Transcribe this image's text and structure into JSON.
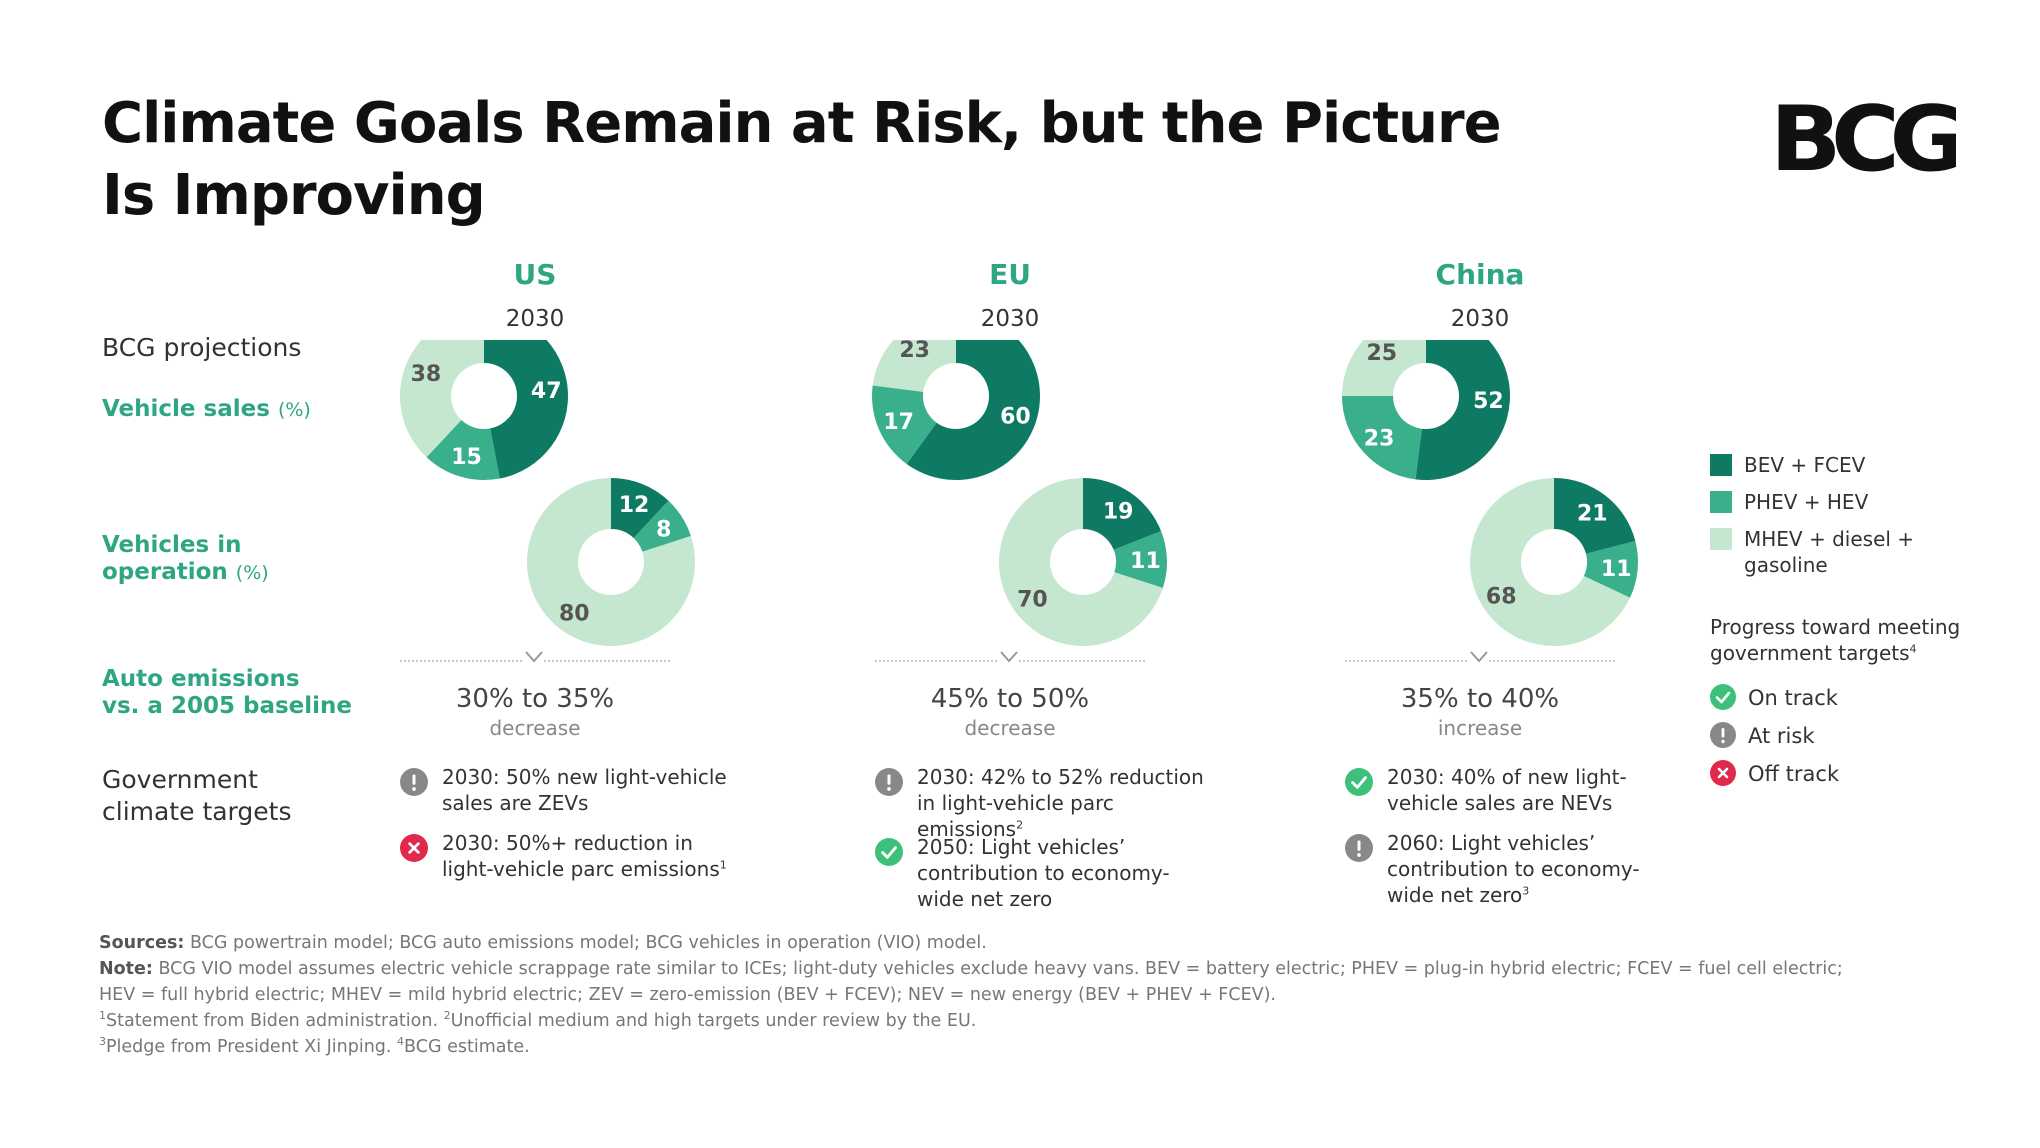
{
  "title_line1": "Climate Goals Remain at Risk, but the Picture",
  "title_line2": "Is Improving",
  "logo_text": "BCG",
  "row_labels": {
    "projections": "BCG projections",
    "sales": "Vehicle sales",
    "sales_unit": "(%)",
    "vio_line1": "Vehicles in",
    "vio_line2": "operation",
    "vio_unit": "(%)",
    "emissions_line1": "Auto emissions",
    "emissions_line2": "vs. a 2005 baseline",
    "targets_line1": "Government",
    "targets_line2": "climate targets"
  },
  "colors": {
    "bev_fcev": "#0f7a63",
    "phev_hev": "#3aaf8c",
    "mhev_diesel_gasoline": "#c6e7cf",
    "accent": "#2fa683",
    "on_track": "#3dc07a",
    "at_risk": "#888888",
    "off_track": "#e0294d"
  },
  "chart_data": [
    {
      "type": "pie",
      "region": "US",
      "title": "Vehicle sales (%)",
      "subtitle": "2030",
      "categories": [
        "BEV + FCEV",
        "PHEV + HEV",
        "MHEV + diesel + gasoline"
      ],
      "values": [
        47,
        15,
        38
      ]
    },
    {
      "type": "pie",
      "region": "US",
      "title": "Vehicles in operation (%)",
      "subtitle": "2030",
      "categories": [
        "BEV + FCEV",
        "PHEV + HEV",
        "MHEV + diesel + gasoline"
      ],
      "values": [
        12,
        8,
        80
      ]
    },
    {
      "type": "pie",
      "region": "EU",
      "title": "Vehicle sales (%)",
      "subtitle": "2030",
      "categories": [
        "BEV + FCEV",
        "PHEV + HEV",
        "MHEV + diesel + gasoline"
      ],
      "values": [
        60,
        17,
        23
      ]
    },
    {
      "type": "pie",
      "region": "EU",
      "title": "Vehicles in operation (%)",
      "subtitle": "2030",
      "categories": [
        "BEV + FCEV",
        "PHEV + HEV",
        "MHEV + diesel + gasoline"
      ],
      "values": [
        19,
        11,
        70
      ]
    },
    {
      "type": "pie",
      "region": "China",
      "title": "Vehicle sales (%)",
      "subtitle": "2030",
      "categories": [
        "BEV + FCEV",
        "PHEV + HEV",
        "MHEV + diesel + gasoline"
      ],
      "values": [
        52,
        23,
        25
      ]
    },
    {
      "type": "pie",
      "region": "China",
      "title": "Vehicles in operation (%)",
      "subtitle": "2030",
      "categories": [
        "BEV + FCEV",
        "PHEV + HEV",
        "MHEV + diesel + gasoline"
      ],
      "values": [
        21,
        11,
        68
      ]
    }
  ],
  "regions": [
    {
      "name": "US",
      "year": "2030",
      "emissions_value": "30% to 35%",
      "emissions_direction": "decrease",
      "targets": [
        {
          "status": "at_risk",
          "text": "2030: 50% new light-vehicle sales are ZEVs",
          "sup": ""
        },
        {
          "status": "off_track",
          "text": "2030: 50%+ reduction in light-vehicle parc emissions",
          "sup": "1"
        }
      ]
    },
    {
      "name": "EU",
      "year": "2030",
      "emissions_value": "45% to 50%",
      "emissions_direction": "decrease",
      "targets": [
        {
          "status": "at_risk",
          "text": "2030: 42% to 52% reduction in light-vehicle parc emissions",
          "sup": "2"
        },
        {
          "status": "on_track",
          "text": "2050: Light vehicles’ contribution to economy-wide net zero",
          "sup": ""
        }
      ]
    },
    {
      "name": "China",
      "year": "2030",
      "emissions_value": "35% to 40%",
      "emissions_direction": "increase",
      "targets": [
        {
          "status": "on_track",
          "text": "2030: 40% of new light-vehicle sales are NEVs",
          "sup": ""
        },
        {
          "status": "at_risk",
          "text": "2060: Light vehicles’ contribution to economy-wide net zero",
          "sup": "3"
        }
      ]
    }
  ],
  "legend": {
    "items": [
      {
        "label": "BEV + FCEV",
        "color": "#0f7a63"
      },
      {
        "label": "PHEV + HEV",
        "color": "#3aaf8c"
      },
      {
        "label": "MHEV + diesel + gasoline",
        "color": "#c6e7cf"
      }
    ],
    "progress_title": "Progress toward meeting government targets",
    "progress_sup": "4",
    "statuses": [
      {
        "key": "on_track",
        "label": "On track"
      },
      {
        "key": "at_risk",
        "label": "At risk"
      },
      {
        "key": "off_track",
        "label": "Off track"
      }
    ]
  },
  "notes": {
    "sources_label": "Sources:",
    "sources_text": "BCG powertrain model; BCG auto emissions model; BCG vehicles in operation (VIO) model.",
    "note_label": "Note:",
    "note_text_1": "BCG VIO model assumes electric vehicle scrappage rate similar to ICEs; light-duty vehicles exclude heavy vans. BEV = battery electric; PHEV = plug-in hybrid electric; FCEV = fuel cell electric;",
    "note_text_2": "HEV = full hybrid electric; MHEV = mild hybrid electric; ZEV = zero-emission (BEV + FCEV); NEV = new energy (BEV + PHEV + FCEV).",
    "fn1": "Statement from Biden administration.",
    "fn2": "Unofficial medium and high targets under review by the EU.",
    "fn3": "Pledge from President Xi Jinping.",
    "fn4": "BCG estimate."
  }
}
